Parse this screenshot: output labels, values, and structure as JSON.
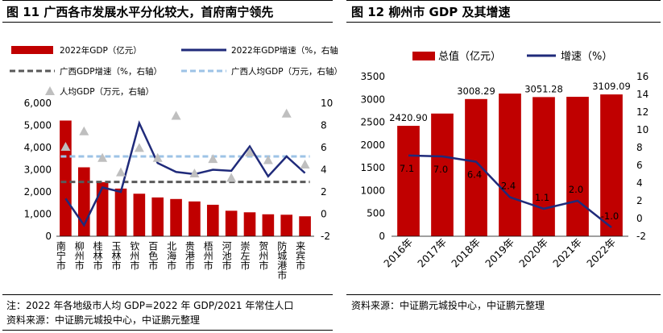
{
  "left_figure": {
    "title": "图 11 广西各市发展水平分化较大，首府南宁领先",
    "note": "注：2022 年各地级市人均 GDP=2022 年 GDP/2021 年常住人口",
    "source": "资料来源：中证鹏元城投中心，中证鹏元整理"
  },
  "right_figure": {
    "title": "图 12 柳州市 GDP 及其增速",
    "source": "资料来源：中证鹏元城投中心，中证鹏元整理"
  },
  "colors": {
    "bar": "#c00000",
    "line": "#1f2a7a",
    "guangxi_growth": "#595959",
    "guangxi_percapita": "#9dc3e6",
    "triangle": "#bfbfbf"
  },
  "chart_data": [
    {
      "type": "bar",
      "categories": [
        "南宁市",
        "柳州市",
        "桂林市",
        "玉林市",
        "钦州市",
        "百色市",
        "北海市",
        "贵港市",
        "梧州市",
        "河池市",
        "崇左市",
        "贺州市",
        "防城港市",
        "来宾市"
      ],
      "series": [
        {
          "name": "2022年GDP（亿元）",
          "type": "bar",
          "axis": "left",
          "values": [
            5218,
            3109,
            2441,
            2150,
            1918,
            1750,
            1680,
            1570,
            1420,
            1150,
            1080,
            990,
            970,
            900
          ]
        },
        {
          "name": "2022年GDP增速（%，右轴）",
          "type": "line",
          "axis": "right",
          "values": [
            1.4,
            -1.0,
            2.4,
            2.0,
            8.2,
            4.6,
            3.8,
            3.6,
            4.0,
            3.9,
            6.1,
            3.4,
            5.2,
            3.7
          ]
        },
        {
          "name": "广西GDP增速（%，右轴）",
          "type": "line",
          "axis": "right",
          "values": [
            2.9,
            2.9,
            2.9,
            2.9,
            2.9,
            2.9,
            2.9,
            2.9,
            2.9,
            2.9,
            2.9,
            2.9,
            2.9,
            2.9
          ]
        },
        {
          "name": "广西人均GDP（万元，右轴）",
          "type": "line",
          "axis": "right",
          "values": [
            5.2,
            5.2,
            5.2,
            5.2,
            5.2,
            5.2,
            5.2,
            5.2,
            5.2,
            5.2,
            5.2,
            5.2,
            5.2,
            5.2
          ]
        },
        {
          "name": "人均GDP（万元，右轴）",
          "type": "scatter",
          "axis": "right",
          "values": [
            6.0,
            7.4,
            5.0,
            3.7,
            5.9,
            5.0,
            8.8,
            3.6,
            4.9,
            3.2,
            5.5,
            4.8,
            9.0,
            4.4
          ]
        }
      ],
      "yleft": {
        "ticks": [
          "0",
          "1,000",
          "2,000",
          "3,000",
          "4,000",
          "5,000",
          "6,000"
        ],
        "lim": [
          0,
          6000
        ]
      },
      "yright": {
        "ticks": [
          "-2",
          "0",
          "2",
          "4",
          "6",
          "8",
          "10"
        ],
        "lim": [
          -2,
          10
        ]
      },
      "legend_position": "top"
    },
    {
      "type": "bar",
      "categories": [
        "2016年",
        "2017年",
        "2018年",
        "2019年",
        "2020年",
        "2021年",
        "2022年"
      ],
      "series": [
        {
          "name": "总值（亿元）",
          "type": "bar",
          "axis": "left",
          "values": [
            2420.9,
            2690,
            3008.29,
            3128,
            3051.28,
            3057,
            3109.09
          ]
        },
        {
          "name": "增速（%）",
          "type": "line",
          "axis": "right",
          "values": [
            7.1,
            7.0,
            6.4,
            2.4,
            1.1,
            2.0,
            -1.0
          ]
        }
      ],
      "bar_labels": [
        "2420.90",
        "",
        "3008.29",
        "",
        "3051.28",
        "",
        "3109.09"
      ],
      "line_labels": [
        "7.1",
        "7.0",
        "6.4",
        "2.4",
        "1.1",
        "2.0",
        "-1.0"
      ],
      "yleft": {
        "ticks": [
          "0",
          "500",
          "1000",
          "1500",
          "2000",
          "2500",
          "3000",
          "3500"
        ],
        "lim": [
          0,
          3500
        ]
      },
      "yright": {
        "ticks": [
          "-2",
          "0",
          "2",
          "4",
          "6",
          "8",
          "10",
          "12",
          "14",
          "16"
        ],
        "lim": [
          -2,
          16
        ]
      },
      "legend_position": "top"
    }
  ]
}
